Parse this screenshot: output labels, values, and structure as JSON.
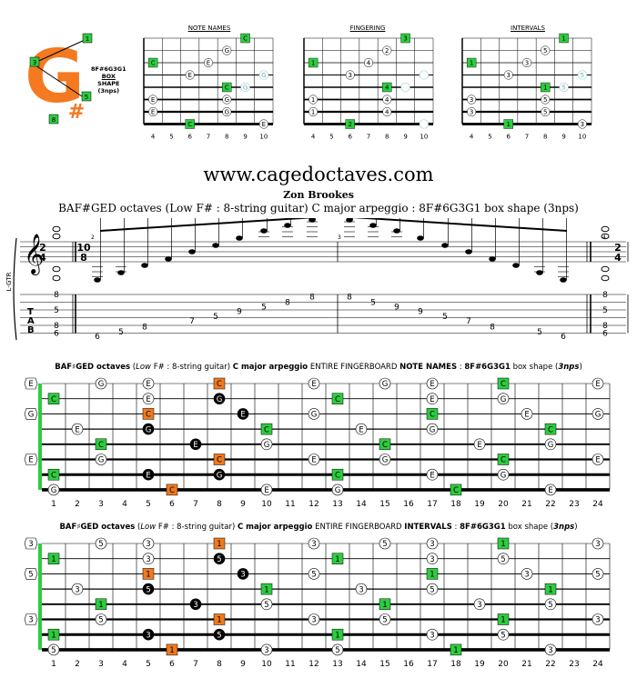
{
  "header": {
    "logo_letter": "G",
    "logo_sharp": "#",
    "logo_markers": [
      "1",
      "3",
      "5",
      "8"
    ],
    "shape_label_lines": [
      "8F#6G3G1",
      "BOX",
      "SHAPE",
      "(3nps)"
    ],
    "mini_titles": [
      "NOTE NAMES",
      "FINGERING",
      "INTERVALS"
    ],
    "mini_fret_numbers": [
      "4",
      "5",
      "6",
      "7",
      "8",
      "9",
      "10"
    ]
  },
  "site": "www.cagedoctaves.com",
  "author": "Zon Brookes",
  "subtitle": "BAF#GED octaves (Low F# : 8-string guitar) C major arpeggio : 8F#6G3G1 box shape (3nps)",
  "notation": {
    "staff_label": "L-GTR",
    "time_sig_start": [
      "2",
      "4"
    ],
    "time_sig_mid": [
      "10",
      "8"
    ],
    "time_sig_end": [
      "2",
      "4"
    ],
    "measure_numbers": [
      "2",
      "3",
      "4"
    ],
    "tab_letters": [
      "T",
      "A",
      "B"
    ],
    "chord_start": [
      "8",
      "5",
      "8",
      "6"
    ],
    "run_frets": [
      "6",
      "5",
      "8",
      "7",
      "5",
      "9",
      "5",
      "8",
      "8",
      "8",
      "5",
      "9",
      "9",
      "5",
      "7",
      "8",
      "5",
      "6"
    ],
    "chord_end": [
      "8",
      "5",
      "8",
      "6"
    ]
  },
  "fretboards": [
    {
      "title_bold1": "BAF",
      "title_sharp": "#",
      "title_bold2": "GED octaves",
      "title_italic1": "Low",
      "title_plain1": "F# : 8-string guitar)",
      "title_bold3": "C major arpeggio",
      "title_plain2": "ENTIRE FINGERBOARD",
      "title_bold4": "NOTE NAMES",
      "title_plain3": ":",
      "title_bold5": "8F#6G3G1",
      "title_plain4": "box shape (",
      "title_bolditalic": "3nps",
      "title_plain5": ")"
    },
    {
      "title_bold1": "BAF",
      "title_sharp": "#",
      "title_bold2": "GED octaves",
      "title_italic1": "Low",
      "title_plain1": "F# : 8-string guitar)",
      "title_bold3": "C major arpeggio",
      "title_plain2": "ENTIRE FINGERBOARD",
      "title_bold4": "INTERVALS",
      "title_plain3": ":",
      "title_bold5": "8F#6G3G1",
      "title_plain4": "box shape (",
      "title_bolditalic": "3nps",
      "title_plain5": ")"
    }
  ],
  "fret_numbers": [
    "1",
    "2",
    "3",
    "4",
    "5",
    "6",
    "7",
    "8",
    "9",
    "10",
    "11",
    "12",
    "13",
    "14",
    "15",
    "16",
    "17",
    "18",
    "19",
    "20",
    "21",
    "22",
    "23",
    "24"
  ],
  "colors": {
    "root": "#2ecc40",
    "highlight": "#f07a1e",
    "black": "#000000",
    "open": "#ffffff",
    "logo": "#f47920"
  }
}
